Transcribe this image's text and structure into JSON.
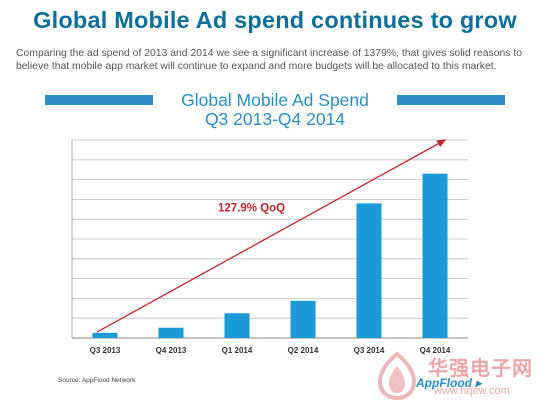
{
  "page": {
    "headline": "Global Mobile Ad spend continues to grow",
    "intro": "Comparing the ad spend of 2013 and 2014 we see a significant increase of 1379%, that gives solid reasons to believe that mobile app market will continue to expand and more budgets will be allocated to this market.",
    "source": "Source: AppFlood Network",
    "brand": "AppFlood",
    "watermark": "华强电子网",
    "watermark_url": "www.hqew.com"
  },
  "colors": {
    "headline": "#0c6f9c",
    "accent": "#2b8fc6",
    "bar": "#1a9ad6",
    "trend": "#c0282d",
    "grid": "#bdbdbd"
  },
  "chart_data": {
    "type": "bar",
    "title_line1": "Global Mobile Ad Spend",
    "title_line2": "Q3 2013-Q4 2014",
    "categories": [
      "Q3 2013",
      "Q4 2013",
      "Q1 2014",
      "Q2 2014",
      "Q3 2014",
      "Q4 2014"
    ],
    "values": [
      2.6,
      5.2,
      12.5,
      18.8,
      68,
      83
    ],
    "ylim": [
      0,
      100
    ],
    "grid": true,
    "annotation": "127.9% QoQ",
    "trend_arrow": {
      "from": [
        0,
        3
      ],
      "to": [
        5,
        100
      ]
    }
  }
}
